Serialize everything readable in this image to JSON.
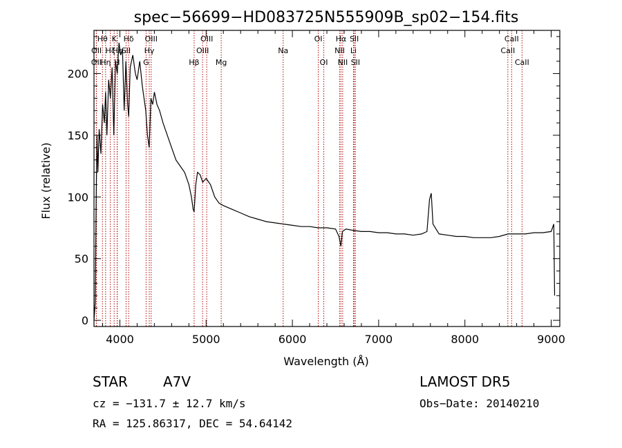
{
  "chart_data": {
    "type": "line",
    "title": "spec−56699−HD083725N555909B_sp02−154.fits",
    "xlabel": "Wavelength (Å)",
    "ylabel": "Flux (relative)",
    "xlim": [
      3700,
      9100
    ],
    "ylim": [
      -5,
      235
    ],
    "x_ticks": [
      4000,
      5000,
      6000,
      7000,
      8000,
      9000
    ],
    "x_tick_labels": [
      "4000",
      "5000",
      "6000",
      "7000",
      "8000",
      "9000"
    ],
    "y_ticks": [
      0,
      50,
      100,
      150,
      200
    ],
    "y_tick_labels": [
      "0",
      "50",
      "100",
      "150",
      "200"
    ],
    "grid": false,
    "series": [
      {
        "color": "#000000",
        "x": [
          3700,
          3715,
          3725,
          3735,
          3745,
          3760,
          3780,
          3800,
          3820,
          3835,
          3850,
          3870,
          3890,
          3910,
          3930,
          3950,
          3970,
          3990,
          4010,
          4030,
          4050,
          4070,
          4090,
          4102,
          4120,
          4150,
          4180,
          4200,
          4230,
          4260,
          4280,
          4300,
          4320,
          4340,
          4360,
          4380,
          4400,
          4430,
          4460,
          4500,
          4550,
          4600,
          4650,
          4700,
          4750,
          4800,
          4830,
          4850,
          4861,
          4880,
          4900,
          4930,
          4960,
          5000,
          5050,
          5100,
          5150,
          5200,
          5300,
          5400,
          5500,
          5600,
          5700,
          5800,
          5900,
          6000,
          6100,
          6200,
          6300,
          6400,
          6500,
          6540,
          6563,
          6580,
          6620,
          6700,
          6800,
          6900,
          7000,
          7100,
          7200,
          7300,
          7400,
          7500,
          7560,
          7590,
          7610,
          7630,
          7700,
          7800,
          7900,
          8000,
          8100,
          8200,
          8300,
          8400,
          8500,
          8600,
          8700,
          8800,
          8900,
          9000,
          9030,
          9040
        ],
        "y": [
          0,
          15,
          95,
          150,
          120,
          155,
          135,
          175,
          160,
          185,
          150,
          195,
          180,
          205,
          150,
          210,
          200,
          225,
          215,
          220,
          170,
          210,
          175,
          165,
          205,
          215,
          200,
          195,
          210,
          190,
          180,
          170,
          150,
          140,
          180,
          175,
          185,
          175,
          170,
          160,
          150,
          140,
          130,
          125,
          120,
          110,
          100,
          90,
          88,
          110,
          120,
          118,
          112,
          115,
          110,
          100,
          95,
          93,
          90,
          87,
          84,
          82,
          80,
          79,
          78,
          77,
          76,
          76,
          75,
          75,
          74,
          68,
          60,
          72,
          74,
          73,
          72,
          72,
          71,
          71,
          70,
          70,
          69,
          70,
          72,
          98,
          103,
          78,
          70,
          69,
          68,
          68,
          67,
          67,
          67,
          68,
          70,
          70,
          70,
          71,
          71,
          72,
          78,
          20
        ]
      }
    ],
    "spectral_lines": [
      {
        "labels": [
          "OII"
        ],
        "x": 3727,
        "row": 3
      },
      {
        "labels": [
          "OII"
        ],
        "x": 3729,
        "row": 2
      },
      {
        "labels": [
          "Hθ"
        ],
        "x": 3798,
        "row": 1
      },
      {
        "labels": [
          "Hη"
        ],
        "x": 3835,
        "row": 3
      },
      {
        "labels": [
          "Hζ"
        ],
        "x": 3889,
        "row": 2
      },
      {
        "labels": [
          "K"
        ],
        "x": 3934,
        "row": 1
      },
      {
        "labels": [
          "H"
        ],
        "x": 3968,
        "row": 3
      },
      {
        "labels": [
          "Hε"
        ],
        "x": 3970,
        "row": 2
      },
      {
        "labels": [
          "Hδ"
        ],
        "x": 4102,
        "row": 1
      },
      {
        "labels": [
          "SII"
        ],
        "x": 4072,
        "row": 2
      },
      {
        "labels": [
          "G"
        ],
        "x": 4304,
        "row": 3
      },
      {
        "labels": [
          "Hγ"
        ],
        "x": 4341,
        "row": 2
      },
      {
        "labels": [
          "OIII"
        ],
        "x": 4363,
        "row": 1
      },
      {
        "labels": [
          "Hβ"
        ],
        "x": 4861,
        "row": 3
      },
      {
        "labels": [
          "OIII"
        ],
        "x": 4959,
        "row": 2
      },
      {
        "labels": [
          "OIII"
        ],
        "x": 5007,
        "row": 1
      },
      {
        "labels": [
          "Mg"
        ],
        "x": 5175,
        "row": 3
      },
      {
        "labels": [
          "Na"
        ],
        "x": 5893,
        "row": 2
      },
      {
        "labels": [
          "OI"
        ],
        "x": 6300,
        "row": 1
      },
      {
        "labels": [
          "OI"
        ],
        "x": 6364,
        "row": 3
      },
      {
        "labels": [
          "NII"
        ],
        "x": 6548,
        "row": 2
      },
      {
        "labels": [
          "Hα"
        ],
        "x": 6563,
        "row": 1
      },
      {
        "labels": [
          "NII"
        ],
        "x": 6583,
        "row": 3
      },
      {
        "labels": [
          "Li"
        ],
        "x": 6708,
        "row": 2
      },
      {
        "labels": [
          "SII"
        ],
        "x": 6717,
        "row": 1
      },
      {
        "labels": [
          "SII"
        ],
        "x": 6731,
        "row": 3
      },
      {
        "labels": [
          "CaII"
        ],
        "x": 8498,
        "row": 2
      },
      {
        "labels": [
          "CaII"
        ],
        "x": 8542,
        "row": 1
      },
      {
        "labels": [
          "CaII"
        ],
        "x": 8662,
        "row": 3
      }
    ],
    "line_color": "#b00000"
  },
  "info": {
    "object_class": "STAR",
    "subclass": "A7V",
    "survey": "LAMOST DR5",
    "cz": "cz = −131.7 ± 12.7 km/s",
    "obs_date": "Obs−Date: 20140210",
    "coords": "RA = 125.86317, DEC =  54.64142"
  }
}
